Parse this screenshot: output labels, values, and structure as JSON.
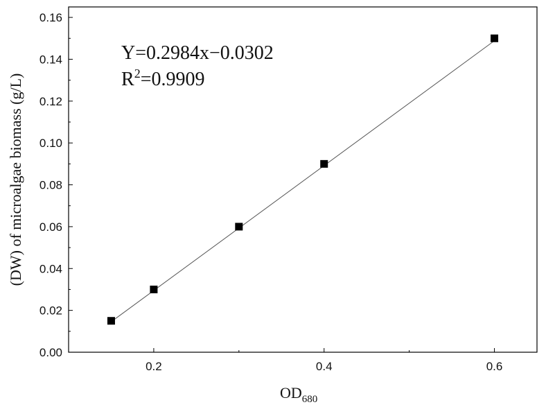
{
  "chart_data": {
    "type": "scatter",
    "xlabel": "OD",
    "xlabel_subscript": "680",
    "ylabel": "(DW) of microalgae biomass (g/L)",
    "xlim": [
      0.1,
      0.65
    ],
    "ylim": [
      0.0,
      0.165
    ],
    "xticks": [
      0.2,
      0.4,
      0.6
    ],
    "yticks": [
      0.0,
      0.02,
      0.04,
      0.06,
      0.08,
      0.1,
      0.12,
      0.14,
      0.16
    ],
    "xtick_labels": [
      "0.2",
      "0.4",
      "0.6"
    ],
    "ytick_labels": [
      "0.00",
      "0.02",
      "0.04",
      "0.06",
      "0.08",
      "0.10",
      "0.12",
      "0.14",
      "0.16"
    ],
    "grid": false,
    "marker": "square",
    "marker_color": "#000000",
    "line_color": "#555555",
    "points": [
      {
        "x": 0.15,
        "y": 0.015
      },
      {
        "x": 0.2,
        "y": 0.03
      },
      {
        "x": 0.3,
        "y": 0.06
      },
      {
        "x": 0.4,
        "y": 0.09
      },
      {
        "x": 0.6,
        "y": 0.15
      }
    ],
    "fit": {
      "slope": 0.2984,
      "intercept": -0.0302,
      "x_range": [
        0.15,
        0.6
      ]
    },
    "annotations": {
      "equation": "Y=0.2984x−0.0302",
      "r2_prefix": "R",
      "r2_sup": "2",
      "r2_rest": "=0.9909"
    }
  }
}
